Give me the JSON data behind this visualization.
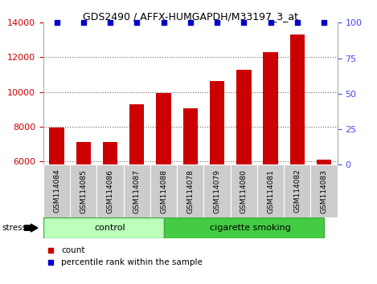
{
  "title": "GDS2490 / AFFX-HUMGAPDH/M33197_3_at",
  "samples": [
    "GSM114084",
    "GSM114085",
    "GSM114086",
    "GSM114087",
    "GSM114088",
    "GSM114078",
    "GSM114079",
    "GSM114080",
    "GSM114081",
    "GSM114082",
    "GSM114083"
  ],
  "counts": [
    7950,
    7100,
    7100,
    9300,
    9950,
    9050,
    10650,
    11300,
    12300,
    13300,
    6100
  ],
  "percentiles": [
    100,
    100,
    100,
    100,
    100,
    100,
    100,
    100,
    100,
    100,
    100
  ],
  "bar_color": "#cc0000",
  "dot_color": "#0000cc",
  "ylim_left": [
    5800,
    14000
  ],
  "ylim_right": [
    0,
    100
  ],
  "yticks_left": [
    6000,
    8000,
    10000,
    12000,
    14000
  ],
  "yticks_right": [
    0,
    25,
    50,
    75,
    100
  ],
  "groups": [
    {
      "label": "control",
      "start": 0,
      "end": 4,
      "color": "#bbffbb",
      "edge_color": "#44bb44"
    },
    {
      "label": "cigarette smoking",
      "start": 5,
      "end": 10,
      "color": "#44cc44",
      "edge_color": "#44bb44"
    }
  ],
  "stress_label": "stress",
  "legend_items": [
    {
      "label": "count",
      "color": "#cc0000"
    },
    {
      "label": "percentile rank within the sample",
      "color": "#0000cc"
    }
  ],
  "background_color": "#ffffff",
  "label_box_color": "#cccccc",
  "grid_color": "#666666",
  "title_fontsize": 9,
  "axis_fontsize": 8,
  "sample_fontsize": 6.5
}
